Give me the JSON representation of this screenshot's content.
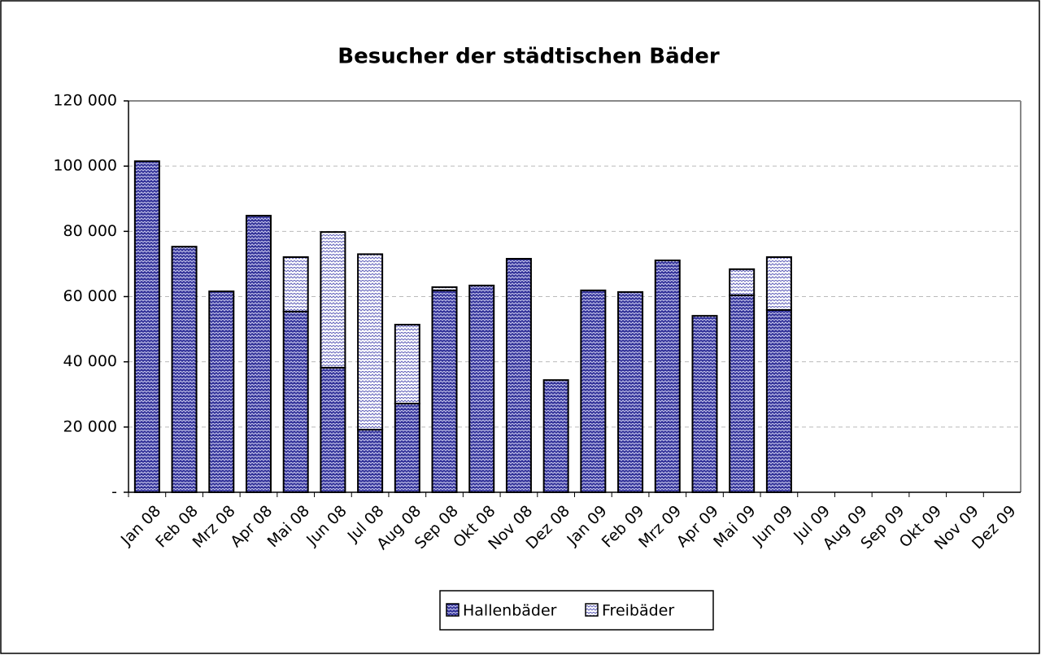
{
  "chart_data": {
    "type": "stacked-bar",
    "title": "Besucher der städtischen Bäder",
    "categories": [
      "Jan 08",
      "Feb 08",
      "Mrz 08",
      "Apr 08",
      "Mai 08",
      "Jun 08",
      "Jul 08",
      "Aug 08",
      "Sep 08",
      "Okt 08",
      "Nov 08",
      "Dez 08",
      "Jan 09",
      "Feb 09",
      "Mrz 09",
      "Apr 09",
      "Mai 09",
      "Jun 09",
      "Jul 09",
      "Aug 09",
      "Sep 09",
      "Okt 09",
      "Nov 09",
      "Dez 09"
    ],
    "series": [
      {
        "name": "Hallenbäder",
        "color": "#333399",
        "values": [
          101500,
          75300,
          61600,
          84800,
          55400,
          38200,
          19200,
          27200,
          61900,
          63400,
          71600,
          34400,
          61900,
          61400,
          71100,
          54100,
          60400,
          55900,
          null,
          null,
          null,
          null,
          null,
          null
        ]
      },
      {
        "name": "Freibäder",
        "color": "#ffffff",
        "values": [
          0,
          0,
          0,
          0,
          16700,
          41600,
          53800,
          24200,
          1000,
          0,
          0,
          0,
          0,
          0,
          0,
          0,
          8000,
          16200,
          null,
          null,
          null,
          null,
          null,
          null
        ]
      }
    ],
    "ylim": [
      0,
      120000
    ],
    "yticks": [
      {
        "value": 0,
        "label": "-"
      },
      {
        "value": 20000,
        "label": "20 000"
      },
      {
        "value": 40000,
        "label": "40 000"
      },
      {
        "value": 60000,
        "label": "60 000"
      },
      {
        "value": 80000,
        "label": "80 000"
      },
      {
        "value": 100000,
        "label": "100 000"
      },
      {
        "value": 120000,
        "label": "120 000"
      }
    ],
    "grid": true,
    "legend": "bottom"
  }
}
